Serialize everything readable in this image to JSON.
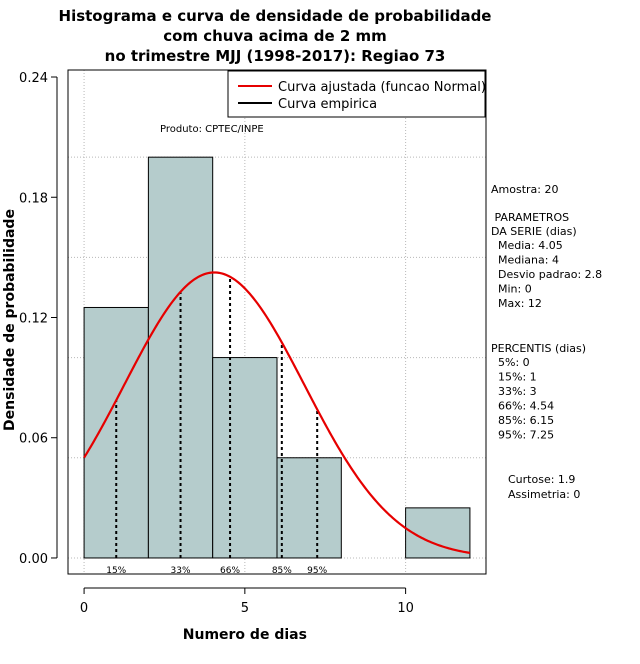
{
  "chart_data": {
    "type": "bar",
    "title": [
      "Histograma e curva de densidade de probabilidade",
      "com chuva acima de 2 mm",
      "no trimestre MJJ (1998-2017): Regiao 73"
    ],
    "xlabel": "Numero de dias",
    "ylabel": "Densidade de probabilidade",
    "xlim": [
      -0.5,
      12.5
    ],
    "ylim": [
      -0.008,
      0.2435
    ],
    "x_ticks": [
      0,
      5,
      10
    ],
    "y_ticks": [
      0.0,
      0.06,
      0.12,
      0.18,
      0.24
    ],
    "y_tick_labels": [
      "0.00",
      "0.06",
      "0.12",
      "0.18",
      "0.24"
    ],
    "grid_y": [
      0.0,
      0.05,
      0.1,
      0.15,
      0.2
    ],
    "bins": [
      {
        "x0": 0,
        "x1": 2,
        "density": 0.125
      },
      {
        "x0": 2,
        "x1": 4,
        "density": 0.2
      },
      {
        "x0": 4,
        "x1": 6,
        "density": 0.1
      },
      {
        "x0": 6,
        "x1": 8,
        "density": 0.05
      },
      {
        "x0": 8,
        "x1": 10,
        "density": 0.0
      },
      {
        "x0": 10,
        "x1": 12,
        "density": 0.025
      }
    ],
    "series": [
      {
        "name": "Curva ajustada (funcao Normal)",
        "color": "#e60000",
        "distribution": "normal",
        "mean": 4.05,
        "sd": 2.8,
        "x_range": [
          0,
          12
        ]
      },
      {
        "name": "Curva empirica",
        "color": "#000000"
      }
    ],
    "percentile_lines": [
      {
        "label": "15%",
        "x": 1
      },
      {
        "label": "33%",
        "x": 3
      },
      {
        "label": "66%",
        "x": 4.54
      },
      {
        "label": "85%",
        "x": 6.15
      },
      {
        "label": "95%",
        "x": 7.25
      }
    ],
    "legend_position": "top-right",
    "bar_color": "#b5cccc"
  },
  "annotations": {
    "produto": "Produto: CPTEC/INPE",
    "amostra": "Amostra: 20",
    "parametros_title": [
      " PARAMETROS",
      "DA SERIE (dias)"
    ],
    "parametros": [
      "  Media: 4.05",
      "  Mediana: 4",
      "  Desvio padrao: 2.8",
      "  Min: 0",
      "  Max: 12"
    ],
    "percentis_title": "PERCENTIS (dias)",
    "percentis": [
      "  5%: 0",
      "  15%: 1",
      "  33%: 3",
      "  66%: 4.54",
      "  85%: 6.15",
      "  95%: 7.25"
    ],
    "shape": [
      "Curtose: 1.9",
      "Assimetria: 0"
    ]
  }
}
